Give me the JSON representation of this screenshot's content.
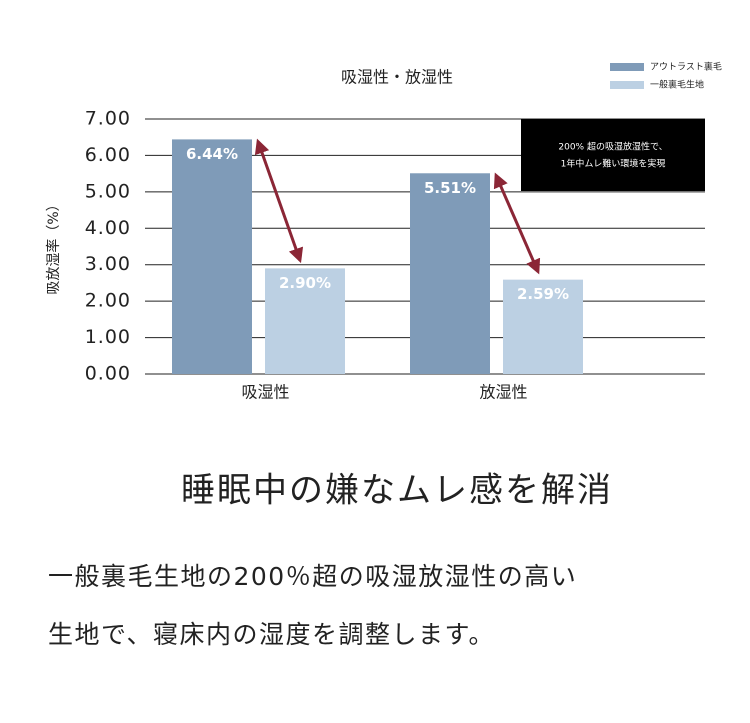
{
  "chart_data": {
    "type": "bar",
    "title": "吸湿性・放湿性",
    "y_label": "吸放湿率（%）",
    "categories": [
      "吸湿性",
      "放湿性"
    ],
    "series": [
      {
        "name": "アウトラスト裏毛",
        "color": "#7f9bb8",
        "values": [
          6.44,
          5.51
        ],
        "value_labels": [
          "6.44%",
          "5.51%"
        ]
      },
      {
        "name": "一般裏毛生地",
        "color": "#bcd0e3",
        "values": [
          2.9,
          2.59
        ],
        "value_labels": [
          "2.90%",
          "2.59%"
        ]
      }
    ],
    "ylim": [
      0,
      7
    ],
    "yticks": [
      {
        "value": 0,
        "label": "0.00"
      },
      {
        "value": 1,
        "label": "1.00"
      },
      {
        "value": 2,
        "label": "2.00"
      },
      {
        "value": 3,
        "label": "3.00"
      },
      {
        "value": 4,
        "label": "4.00"
      },
      {
        "value": 5,
        "label": "5.00"
      },
      {
        "value": 6,
        "label": "6.00"
      },
      {
        "value": 7,
        "label": "7.00"
      }
    ],
    "grid": true,
    "legend": "top-right",
    "annotation": [
      "200% 超の吸湿放湿性で、",
      "1年中ムレ難い環境を実現"
    ]
  },
  "heading": "睡眠中の嫌なムレ感を解消",
  "body": [
    "一般裏毛生地の200％超の吸湿放湿性の高い",
    "生地で、寝床内の湿度を調整します。"
  ]
}
